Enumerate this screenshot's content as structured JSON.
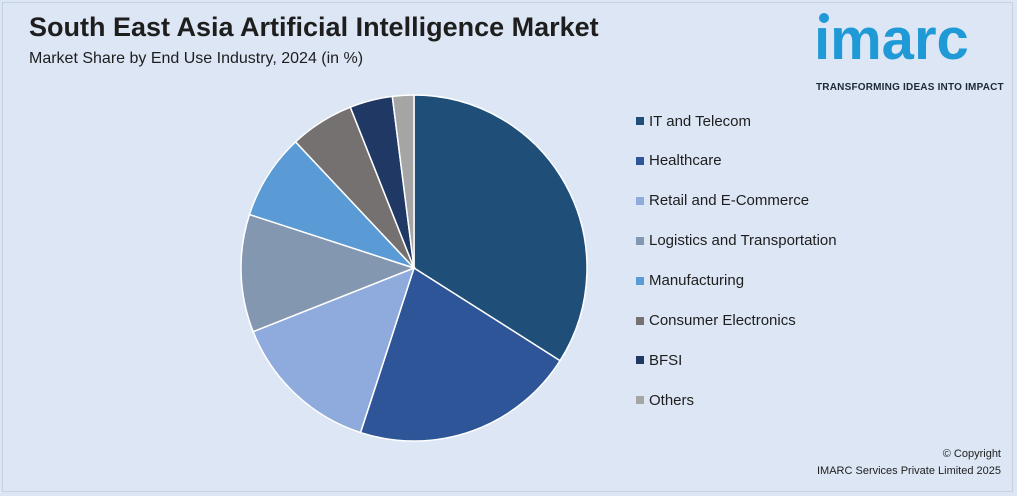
{
  "chart_data": {
    "type": "pie",
    "title": "South East Asia Artificial Intelligence Market",
    "subtitle": "Market Share by End Use Industry, 2024 (in %)",
    "legend_position": "right",
    "categories": [
      "IT and Telecom",
      "Healthcare",
      "Retail and E-Commerce",
      "Logistics and Transportation",
      "Manufacturing",
      "Consumer Electronics",
      "BFSI",
      "Others"
    ],
    "values": [
      34,
      21,
      14,
      11,
      8,
      6,
      4,
      2
    ],
    "colors": [
      "#1f4e79",
      "#2e5597",
      "#8faadc",
      "#8497b0",
      "#5b9bd5",
      "#767171",
      "#203864",
      "#a5a5a5"
    ]
  },
  "brand": {
    "logo_text": "ımarc",
    "tagline": "TRANSFORMING IDEAS INTO IMPACT",
    "logo_color": "#1f9ad6"
  },
  "footer": {
    "copyright": "© Copyright",
    "company": "IMARC Services Private Limited 2025"
  }
}
